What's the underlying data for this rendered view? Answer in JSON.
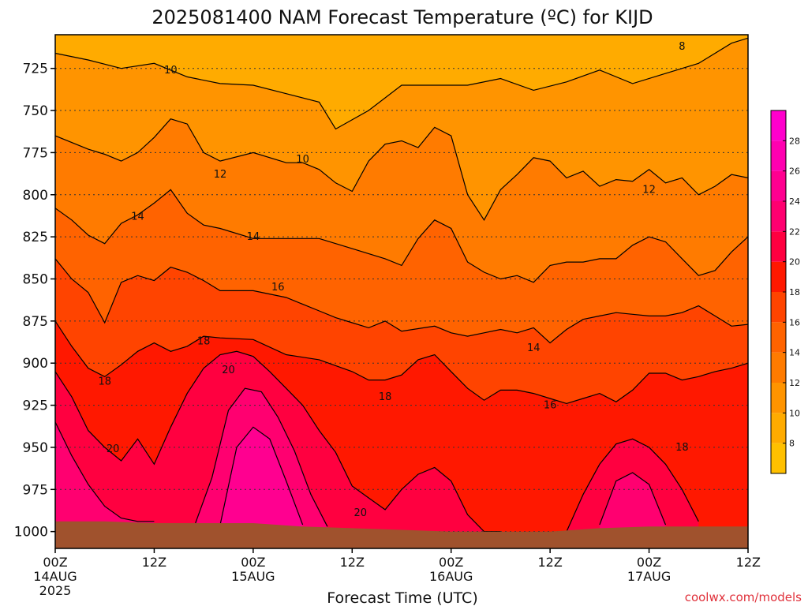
{
  "chart_data": {
    "type": "heatmap",
    "title": "2025081400 NAM Forecast Temperature (ºC) for KIJD",
    "xlabel": "Forecast Time (UTC)",
    "ylabel": "",
    "credit": "coolwx.com/models",
    "x_ticks": [
      {
        "hours": 0,
        "line1": "00Z",
        "line2": "14AUG",
        "line3": "2025"
      },
      {
        "hours": 12,
        "line1": "12Z",
        "line2": "",
        "line3": ""
      },
      {
        "hours": 24,
        "line1": "00Z",
        "line2": "15AUG",
        "line3": ""
      },
      {
        "hours": 36,
        "line1": "12Z",
        "line2": "",
        "line3": ""
      },
      {
        "hours": 48,
        "line1": "00Z",
        "line2": "16AUG",
        "line3": ""
      },
      {
        "hours": 60,
        "line1": "12Z",
        "line2": "",
        "line3": ""
      },
      {
        "hours": 72,
        "line1": "00Z",
        "line2": "17AUG",
        "line3": ""
      },
      {
        "hours": 84,
        "line1": "12Z",
        "line2": "",
        "line3": ""
      }
    ],
    "y_ticks": [
      725,
      750,
      775,
      800,
      825,
      850,
      875,
      900,
      925,
      950,
      975,
      1000
    ],
    "xlim": [
      0,
      84
    ],
    "ylim": [
      1010,
      705
    ],
    "grid": true,
    "colorbar": {
      "ticks": [
        8,
        10,
        12,
        14,
        16,
        18,
        20,
        22,
        24,
        26,
        28
      ],
      "range": [
        6,
        30
      ],
      "bands": [
        {
          "from": 6,
          "to": 8,
          "color": "#ffc000"
        },
        {
          "from": 8,
          "to": 10,
          "color": "#ffab00"
        },
        {
          "from": 10,
          "to": 12,
          "color": "#ff9400"
        },
        {
          "from": 12,
          "to": 14,
          "color": "#ff7b00"
        },
        {
          "from": 14,
          "to": 16,
          "color": "#ff6300"
        },
        {
          "from": 16,
          "to": 18,
          "color": "#ff4400"
        },
        {
          "from": 18,
          "to": 20,
          "color": "#ff1800"
        },
        {
          "from": 20,
          "to": 22,
          "color": "#ff0040"
        },
        {
          "from": 22,
          "to": 24,
          "color": "#ff0070"
        },
        {
          "from": 24,
          "to": 26,
          "color": "#ff0090"
        },
        {
          "from": 26,
          "to": 28,
          "color": "#ff00b0"
        },
        {
          "from": 28,
          "to": 30,
          "color": "#ff00cc"
        }
      ]
    },
    "ground_color": "#a0522d",
    "surface_pressure": [
      {
        "hours": 0,
        "p": 994
      },
      {
        "hours": 6,
        "p": 994
      },
      {
        "hours": 12,
        "p": 995
      },
      {
        "hours": 18,
        "p": 995
      },
      {
        "hours": 24,
        "p": 995
      },
      {
        "hours": 30,
        "p": 997
      },
      {
        "hours": 36,
        "p": 998
      },
      {
        "hours": 42,
        "p": 999
      },
      {
        "hours": 48,
        "p": 1000
      },
      {
        "hours": 54,
        "p": 1000
      },
      {
        "hours": 60,
        "p": 1000
      },
      {
        "hours": 66,
        "p": 998
      },
      {
        "hours": 72,
        "p": 997
      },
      {
        "hours": 78,
        "p": 997
      },
      {
        "hours": 84,
        "p": 997
      }
    ],
    "isotherms": [
      {
        "temp": 10,
        "points": [
          [
            0,
            716
          ],
          [
            4,
            720
          ],
          [
            8,
            725
          ],
          [
            12,
            722
          ],
          [
            16,
            730
          ],
          [
            20,
            734
          ],
          [
            24,
            735
          ],
          [
            28,
            740
          ],
          [
            32,
            745
          ],
          [
            34,
            761
          ],
          [
            38,
            750
          ],
          [
            42,
            735
          ],
          [
            46,
            735
          ],
          [
            50,
            735
          ],
          [
            54,
            731
          ],
          [
            58,
            738
          ],
          [
            62,
            733
          ],
          [
            66,
            726
          ],
          [
            70,
            734
          ],
          [
            74,
            728
          ],
          [
            78,
            722
          ],
          [
            82,
            710
          ],
          [
            84,
            707
          ]
        ]
      },
      {
        "temp": 12,
        "points": [
          [
            0,
            765
          ],
          [
            4,
            773
          ],
          [
            6,
            776
          ],
          [
            8,
            780
          ],
          [
            10,
            775
          ],
          [
            12,
            766
          ],
          [
            14,
            755
          ],
          [
            16,
            758
          ],
          [
            18,
            775
          ],
          [
            20,
            780
          ],
          [
            24,
            775
          ],
          [
            28,
            781
          ],
          [
            30,
            781
          ],
          [
            32,
            785
          ],
          [
            34,
            793
          ],
          [
            36,
            798
          ],
          [
            38,
            780
          ],
          [
            40,
            770
          ],
          [
            42,
            768
          ],
          [
            44,
            772
          ],
          [
            46,
            760
          ],
          [
            48,
            765
          ],
          [
            50,
            800
          ],
          [
            52,
            815
          ],
          [
            54,
            797
          ],
          [
            56,
            788
          ],
          [
            58,
            778
          ],
          [
            60,
            780
          ],
          [
            62,
            790
          ],
          [
            64,
            786
          ],
          [
            66,
            795
          ],
          [
            68,
            791
          ],
          [
            70,
            792
          ],
          [
            72,
            785
          ],
          [
            74,
            793
          ],
          [
            76,
            790
          ],
          [
            78,
            800
          ],
          [
            80,
            795
          ],
          [
            82,
            788
          ],
          [
            84,
            790
          ]
        ]
      },
      {
        "temp": 14,
        "points": [
          [
            0,
            808
          ],
          [
            2,
            815
          ],
          [
            4,
            824
          ],
          [
            6,
            829
          ],
          [
            8,
            817
          ],
          [
            10,
            812
          ],
          [
            12,
            805
          ],
          [
            14,
            797
          ],
          [
            16,
            811
          ],
          [
            18,
            818
          ],
          [
            20,
            820
          ],
          [
            24,
            826
          ],
          [
            28,
            826
          ],
          [
            32,
            826
          ],
          [
            36,
            832
          ],
          [
            40,
            838
          ],
          [
            42,
            842
          ],
          [
            44,
            826
          ],
          [
            46,
            815
          ],
          [
            48,
            820
          ],
          [
            50,
            840
          ],
          [
            52,
            846
          ],
          [
            54,
            850
          ],
          [
            56,
            848
          ],
          [
            58,
            852
          ],
          [
            60,
            842
          ],
          [
            62,
            840
          ],
          [
            64,
            840
          ],
          [
            66,
            838
          ],
          [
            68,
            838
          ],
          [
            70,
            830
          ],
          [
            72,
            825
          ],
          [
            74,
            828
          ],
          [
            76,
            838
          ],
          [
            78,
            848
          ],
          [
            80,
            845
          ],
          [
            82,
            834
          ],
          [
            84,
            825
          ]
        ]
      },
      {
        "temp": 16,
        "points": [
          [
            0,
            838
          ],
          [
            2,
            850
          ],
          [
            4,
            858
          ],
          [
            6,
            876
          ],
          [
            8,
            852
          ],
          [
            10,
            848
          ],
          [
            12,
            851
          ],
          [
            14,
            843
          ],
          [
            16,
            846
          ],
          [
            18,
            851
          ],
          [
            20,
            857
          ],
          [
            24,
            857
          ],
          [
            28,
            861
          ],
          [
            32,
            869
          ],
          [
            34,
            873
          ],
          [
            36,
            876
          ],
          [
            38,
            879
          ],
          [
            40,
            875
          ],
          [
            42,
            881
          ],
          [
            46,
            878
          ],
          [
            48,
            882
          ],
          [
            50,
            884
          ],
          [
            52,
            882
          ],
          [
            54,
            880
          ],
          [
            56,
            882
          ],
          [
            58,
            879
          ],
          [
            60,
            888
          ],
          [
            62,
            880
          ],
          [
            64,
            874
          ],
          [
            66,
            872
          ],
          [
            68,
            870
          ],
          [
            70,
            871
          ],
          [
            72,
            872
          ],
          [
            74,
            872
          ],
          [
            76,
            870
          ],
          [
            78,
            866
          ],
          [
            80,
            872
          ],
          [
            82,
            878
          ],
          [
            84,
            877
          ]
        ]
      },
      {
        "temp": 18,
        "points": [
          [
            0,
            875
          ],
          [
            2,
            890
          ],
          [
            4,
            903
          ],
          [
            6,
            908
          ],
          [
            8,
            901
          ],
          [
            10,
            893
          ],
          [
            12,
            888
          ],
          [
            14,
            893
          ],
          [
            16,
            890
          ],
          [
            18,
            884
          ],
          [
            20,
            885
          ],
          [
            24,
            886
          ],
          [
            28,
            895
          ],
          [
            32,
            898
          ],
          [
            36,
            905
          ],
          [
            38,
            910
          ],
          [
            40,
            910
          ],
          [
            42,
            907
          ],
          [
            44,
            898
          ],
          [
            46,
            895
          ],
          [
            48,
            905
          ],
          [
            50,
            915
          ],
          [
            52,
            922
          ],
          [
            54,
            916
          ],
          [
            56,
            916
          ],
          [
            58,
            918
          ],
          [
            60,
            921
          ],
          [
            62,
            924
          ],
          [
            64,
            921
          ],
          [
            66,
            918
          ],
          [
            68,
            923
          ],
          [
            70,
            916
          ],
          [
            72,
            906
          ],
          [
            74,
            906
          ],
          [
            76,
            910
          ],
          [
            78,
            908
          ],
          [
            80,
            905
          ],
          [
            82,
            903
          ],
          [
            84,
            900
          ]
        ]
      },
      {
        "temp": 20,
        "points": [
          [
            0,
            905
          ],
          [
            2,
            920
          ],
          [
            4,
            940
          ],
          [
            6,
            950
          ],
          [
            8,
            958
          ],
          [
            10,
            945
          ],
          [
            12,
            960
          ],
          [
            14,
            938
          ],
          [
            16,
            918
          ],
          [
            18,
            903
          ],
          [
            20,
            895
          ],
          [
            22,
            893
          ],
          [
            24,
            896
          ],
          [
            26,
            905
          ],
          [
            28,
            915
          ],
          [
            30,
            925
          ],
          [
            32,
            940
          ],
          [
            34,
            953
          ],
          [
            36,
            973
          ],
          [
            38,
            980
          ],
          [
            40,
            987
          ],
          [
            42,
            975
          ],
          [
            44,
            966
          ],
          [
            46,
            962
          ],
          [
            48,
            970
          ],
          [
            50,
            990
          ],
          [
            52,
            1000
          ],
          [
            54,
            1000
          ]
        ]
      },
      {
        "temp": 22,
        "points": [
          [
            0,
            935
          ],
          [
            2,
            955
          ],
          [
            4,
            972
          ],
          [
            6,
            985
          ],
          [
            8,
            992
          ],
          [
            10,
            994
          ],
          [
            12,
            994
          ]
        ]
      },
      {
        "temp": 22,
        "points": [
          [
            17,
            995
          ],
          [
            19,
            968
          ],
          [
            21,
            928
          ],
          [
            23,
            915
          ],
          [
            25,
            917
          ],
          [
            27,
            932
          ],
          [
            29,
            952
          ],
          [
            31,
            978
          ],
          [
            33,
            997
          ]
        ]
      },
      {
        "temp": 24,
        "points": [
          [
            20,
            996
          ],
          [
            22,
            950
          ],
          [
            24,
            938
          ],
          [
            26,
            945
          ],
          [
            28,
            970
          ],
          [
            30,
            996
          ]
        ]
      },
      {
        "temp": 20,
        "points": [
          [
            62,
            1000
          ],
          [
            64,
            978
          ],
          [
            66,
            960
          ],
          [
            68,
            948
          ],
          [
            70,
            945
          ],
          [
            72,
            950
          ],
          [
            74,
            960
          ],
          [
            76,
            975
          ],
          [
            78,
            994
          ]
        ]
      },
      {
        "temp": 22,
        "points": [
          [
            66,
            996
          ],
          [
            68,
            970
          ],
          [
            70,
            965
          ],
          [
            72,
            972
          ],
          [
            74,
            996
          ]
        ]
      }
    ],
    "contour_labels": [
      {
        "hours": 14,
        "p": 726,
        "text": "10"
      },
      {
        "hours": 30,
        "p": 779,
        "text": "10"
      },
      {
        "hours": 20,
        "p": 788,
        "text": "12"
      },
      {
        "hours": 72,
        "p": 797,
        "text": "12"
      },
      {
        "hours": 10,
        "p": 813,
        "text": "14"
      },
      {
        "hours": 24,
        "p": 825,
        "text": "14"
      },
      {
        "hours": 58,
        "p": 891,
        "text": "14"
      },
      {
        "hours": 27,
        "p": 855,
        "text": "16"
      },
      {
        "hours": 60,
        "p": 925,
        "text": "16"
      },
      {
        "hours": 18,
        "p": 887,
        "text": "18"
      },
      {
        "hours": 6,
        "p": 911,
        "text": "18"
      },
      {
        "hours": 40,
        "p": 920,
        "text": "18"
      },
      {
        "hours": 76,
        "p": 950,
        "text": "18"
      },
      {
        "hours": 21,
        "p": 904,
        "text": "20"
      },
      {
        "hours": 7,
        "p": 951,
        "text": "20"
      },
      {
        "hours": 37,
        "p": 989,
        "text": "20"
      },
      {
        "hours": 76,
        "p": 712,
        "text": "8"
      }
    ]
  }
}
